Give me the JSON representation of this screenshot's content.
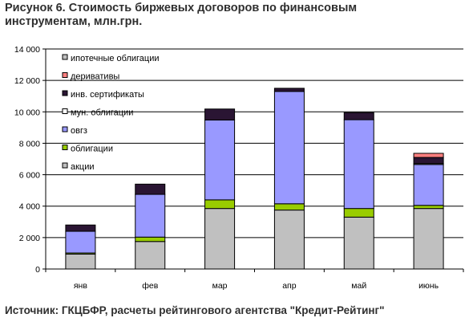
{
  "title_line1": "Рисунок 6. Стоимость биржевых договоров по финансовым",
  "title_line2": "инструментам, млн.грн.",
  "source": "Источник: ГКЦБФР, расчеты рейтингового агентства \"Кредит-Рейтинг\"",
  "chart_data": {
    "type": "bar",
    "stacked": true,
    "title": "Рисунок 6. Стоимость биржевых договоров по финансовым инструментам, млн.грн.",
    "xlabel": "",
    "ylabel": "",
    "ylim": [
      0,
      14000
    ],
    "yticks": [
      0,
      2000,
      4000,
      6000,
      8000,
      10000,
      12000,
      14000
    ],
    "ytick_labels": [
      "0",
      "2 000",
      "4 000",
      "6 000",
      "8 000",
      "10 000",
      "12 000",
      "14 000"
    ],
    "grid": true,
    "legend_position": "top-left inside plot",
    "categories": [
      "янв",
      "фев",
      "мар",
      "апр",
      "май",
      "июнь"
    ],
    "series": [
      {
        "name": "акции",
        "color": "#c0c0c0",
        "values": [
          950,
          1750,
          3850,
          3750,
          3300,
          3850
        ]
      },
      {
        "name": "облигации",
        "color": "#99cc00",
        "values": [
          70,
          280,
          550,
          400,
          550,
          200
        ]
      },
      {
        "name": "овгз",
        "color": "#9999ff",
        "values": [
          1380,
          2720,
          5080,
          7150,
          5650,
          2600
        ]
      },
      {
        "name": "мун. облигации",
        "color": "#ffffff",
        "values": [
          0,
          0,
          0,
          0,
          0,
          60
        ]
      },
      {
        "name": "инв. сертификаты",
        "color": "#2a1533",
        "values": [
          400,
          650,
          700,
          200,
          450,
          390
        ]
      },
      {
        "name": "деривативы",
        "color": "#ff8080",
        "values": [
          0,
          0,
          0,
          0,
          0,
          260
        ]
      },
      {
        "name": "ипотечные облигации",
        "color": "#c0c0c0",
        "values": [
          0,
          0,
          0,
          0,
          0,
          0
        ]
      }
    ]
  }
}
